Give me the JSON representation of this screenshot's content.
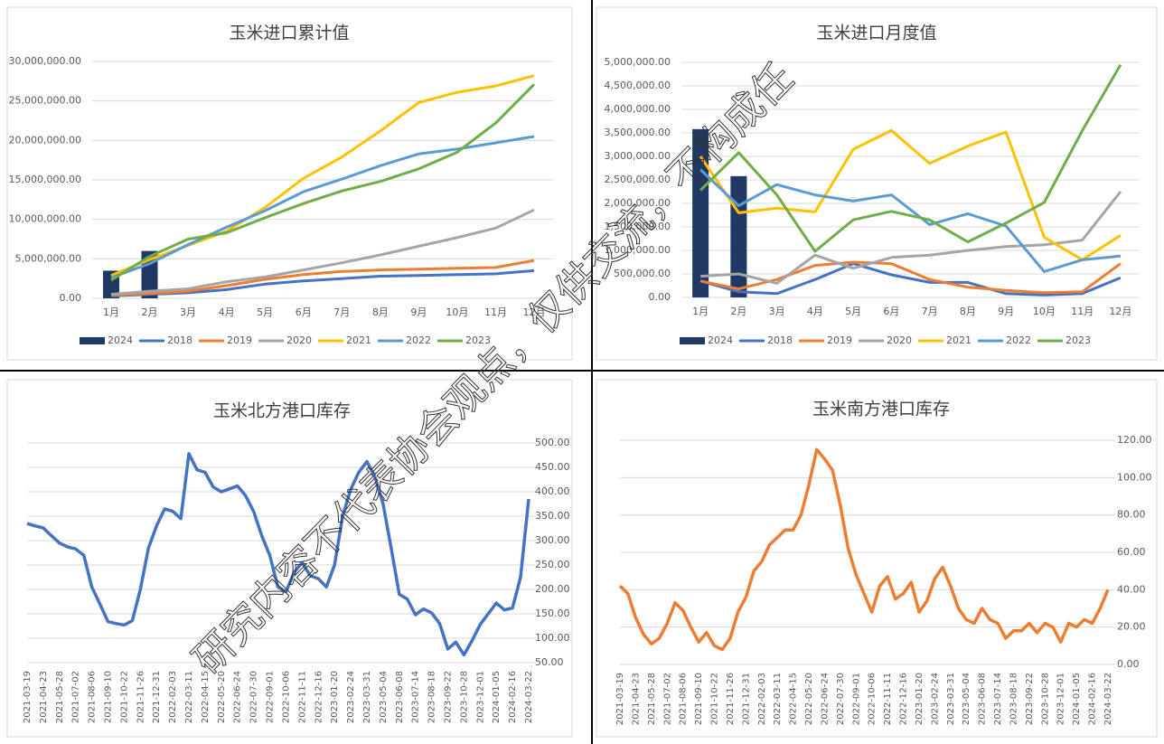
{
  "chart_data": [
    {
      "type": "combo",
      "title": "玉米进口累计值",
      "categories": [
        "1月",
        "2月",
        "3月",
        "4月",
        "5月",
        "6月",
        "7月",
        "8月",
        "9月",
        "10月",
        "11月",
        "12月"
      ],
      "ylim": [
        0,
        30000000
      ],
      "yticks": [
        {
          "value": 0,
          "label": "0.00"
        },
        {
          "value": 5000000,
          "label": "5,000,000.00"
        },
        {
          "value": 10000000,
          "label": "10,000,000.00"
        },
        {
          "value": 15000000,
          "label": "15,000,000.00"
        },
        {
          "value": 20000000,
          "label": "20,000,000.00"
        },
        {
          "value": 25000000,
          "label": "25,000,000.00"
        },
        {
          "value": 30000000,
          "label": "30,000,000.00"
        }
      ],
      "grid": true,
      "legend": "bottom",
      "series": [
        {
          "name": "2024",
          "type": "bar",
          "color": "#203864",
          "values": [
            3500000,
            6000000,
            null,
            null,
            null,
            null,
            null,
            null,
            null,
            null,
            null,
            null
          ]
        },
        {
          "name": "2018",
          "type": "line",
          "color": "#4472c4",
          "values": [
            300000,
            500000,
            700000,
            1100000,
            1800000,
            2200000,
            2500000,
            2800000,
            2900000,
            3000000,
            3100000,
            3500000
          ]
        },
        {
          "name": "2019",
          "type": "line",
          "color": "#ed7d31",
          "values": [
            400000,
            600000,
            900000,
            1600000,
            2400000,
            3000000,
            3400000,
            3600000,
            3700000,
            3800000,
            3900000,
            4800000
          ]
        },
        {
          "name": "2020",
          "type": "line",
          "color": "#a5a5a5",
          "values": [
            500000,
            900000,
            1200000,
            2100000,
            2700000,
            3600000,
            4500000,
            5500000,
            6600000,
            7700000,
            8900000,
            11200000
          ]
        },
        {
          "name": "2021",
          "type": "line",
          "color": "#ffc000",
          "values": [
            2900000,
            4900000,
            6700000,
            8500000,
            11500000,
            15200000,
            17900000,
            21200000,
            24800000,
            26100000,
            26900000,
            28200000
          ]
        },
        {
          "name": "2022",
          "type": "line",
          "color": "#5b9bd5",
          "values": [
            2600000,
            4400000,
            6800000,
            9000000,
            11100000,
            13500000,
            15100000,
            16800000,
            18300000,
            18900000,
            19700000,
            20500000
          ]
        },
        {
          "name": "2023",
          "type": "line",
          "color": "#70ad47",
          "values": [
            2300000,
            5300000,
            7500000,
            8300000,
            10200000,
            12000000,
            13600000,
            14800000,
            16400000,
            18500000,
            22200000,
            27100000
          ]
        }
      ]
    },
    {
      "type": "combo",
      "title": "玉米进口月度值",
      "categories": [
        "1月",
        "2月",
        "3月",
        "4月",
        "5月",
        "6月",
        "7月",
        "8月",
        "9月",
        "10月",
        "11月",
        "12月"
      ],
      "ylim": [
        0,
        5000000
      ],
      "yticks": [
        {
          "value": 0,
          "label": "0.00"
        },
        {
          "value": 500000,
          "label": "500,000.00"
        },
        {
          "value": 1000000,
          "label": "1,000,000.00"
        },
        {
          "value": 1500000,
          "label": "1,500,000.00"
        },
        {
          "value": 2000000,
          "label": "2,000,000.00"
        },
        {
          "value": 2500000,
          "label": "2,500,000.00"
        },
        {
          "value": 3000000,
          "label": "3,000,000.00"
        },
        {
          "value": 3500000,
          "label": "3,500,000.00"
        },
        {
          "value": 4000000,
          "label": "4,000,000.00"
        },
        {
          "value": 4500000,
          "label": "4,500,000.00"
        },
        {
          "value": 5000000,
          "label": "5,000,000.00"
        }
      ],
      "grid": true,
      "legend": "bottom",
      "series": [
        {
          "name": "2024",
          "type": "bar",
          "color": "#203864",
          "values": [
            3580000,
            2580000,
            null,
            null,
            null,
            null,
            null,
            null,
            null,
            null,
            null,
            null
          ]
        },
        {
          "name": "2018",
          "type": "line",
          "color": "#4472c4",
          "values": [
            350000,
            120000,
            80000,
            380000,
            720000,
            480000,
            320000,
            320000,
            80000,
            50000,
            80000,
            420000
          ]
        },
        {
          "name": "2019",
          "type": "line",
          "color": "#ed7d31",
          "values": [
            350000,
            180000,
            380000,
            680000,
            750000,
            720000,
            380000,
            220000,
            150000,
            100000,
            120000,
            720000
          ]
        },
        {
          "name": "2020",
          "type": "line",
          "color": "#a5a5a5",
          "values": [
            450000,
            500000,
            300000,
            900000,
            620000,
            850000,
            900000,
            1000000,
            1080000,
            1120000,
            1220000,
            2250000
          ]
        },
        {
          "name": "2021",
          "type": "line",
          "color": "#ffc000",
          "values": [
            3000000,
            1800000,
            1900000,
            1820000,
            3150000,
            3550000,
            2850000,
            3220000,
            3520000,
            1280000,
            800000,
            1320000
          ]
        },
        {
          "name": "2022",
          "type": "line",
          "color": "#5b9bd5",
          "values": [
            2720000,
            1950000,
            2400000,
            2180000,
            2050000,
            2180000,
            1550000,
            1780000,
            1520000,
            550000,
            800000,
            880000
          ]
        },
        {
          "name": "2023",
          "type": "line",
          "color": "#70ad47",
          "values": [
            2280000,
            3080000,
            2180000,
            980000,
            1650000,
            1830000,
            1650000,
            1180000,
            1580000,
            2020000,
            3550000,
            4950000
          ]
        }
      ]
    },
    {
      "type": "line",
      "title": "玉米北方港口库存",
      "color": "#4472c4",
      "grid": true,
      "yaxis": "right",
      "categories": [
        "2021-03-19",
        null,
        "2021-04-23",
        null,
        "2021-05-28",
        null,
        "2021-07-02",
        null,
        "2021-08-06",
        null,
        "2021-09-10",
        null,
        "2021-10-22",
        null,
        "2021-11-26",
        null,
        "2021-12-31",
        null,
        "2022-02-03",
        null,
        "2022-03-11",
        null,
        "2022-04-15",
        null,
        "2022-05-20",
        null,
        "2022-06-24",
        null,
        "2022-07-30",
        null,
        "2022-09-01",
        null,
        "2022-10-06",
        null,
        "2022-11-11",
        null,
        "2022-12-16",
        null,
        "2023-01-20",
        null,
        "2023-02-24",
        null,
        "2023-03-31",
        null,
        "2023-05-04",
        null,
        "2023-06-08",
        null,
        "2023-07-14",
        null,
        "2023-08-18",
        null,
        "2023-09-22",
        null,
        "2023-10-28",
        null,
        "2023-12-01",
        null,
        "2024-01-05",
        null,
        "2024-02-16",
        null,
        "2024-03-22"
      ],
      "values": [
        335,
        330,
        326,
        310,
        295,
        287,
        283,
        270,
        205,
        170,
        134,
        130,
        127,
        136,
        200,
        285,
        330,
        365,
        360,
        345,
        478,
        445,
        440,
        410,
        400,
        406,
        412,
        392,
        360,
        310,
        270,
        205,
        195,
        235,
        255,
        228,
        222,
        205,
        250,
        350,
        405,
        440,
        462,
        430,
        375,
        285,
        190,
        180,
        148,
        160,
        152,
        130,
        78,
        92,
        66,
        95,
        128,
        150,
        172,
        158,
        162,
        225,
        385
      ],
      "ylim": [
        50,
        500
      ],
      "yticks": [
        {
          "value": 50,
          "label": "50.00"
        },
        {
          "value": 100,
          "label": "100.00"
        },
        {
          "value": 150,
          "label": "150.00"
        },
        {
          "value": 200,
          "label": "200.00"
        },
        {
          "value": 250,
          "label": "250.00"
        },
        {
          "value": 300,
          "label": "300.00"
        },
        {
          "value": 350,
          "label": "350.00"
        },
        {
          "value": 400,
          "label": "400.00"
        },
        {
          "value": 450,
          "label": "450.00"
        },
        {
          "value": 500,
          "label": "500.00"
        }
      ]
    },
    {
      "type": "line",
      "title": "玉米南方港口库存",
      "color": "#ed7d31",
      "grid": true,
      "yaxis": "right",
      "categories": [
        "2021-03-19",
        null,
        "2021-04-23",
        null,
        "2021-05-28",
        null,
        "2021-07-02",
        null,
        "2021-08-06",
        null,
        "2021-09-10",
        null,
        "2021-10-22",
        null,
        "2021-11-26",
        null,
        "2021-12-31",
        null,
        "2022-02-03",
        null,
        "2022-03-11",
        null,
        "2022-04-15",
        null,
        "2022-05-20",
        null,
        "2022-06-24",
        null,
        "2022-07-30",
        null,
        "2022-09-01",
        null,
        "2022-10-06",
        null,
        "2022-11-11",
        null,
        "2022-12-16",
        null,
        "2023-01-20",
        null,
        "2023-02-24",
        null,
        "2023-03-31",
        null,
        "2023-05-04",
        null,
        "2023-06-08",
        null,
        "2023-07-14",
        null,
        "2023-08-18",
        null,
        "2023-09-22",
        null,
        "2023-10-28",
        null,
        "2023-12-01",
        null,
        "2024-01-05",
        null,
        "2024-02-16",
        null,
        "2024-03-22"
      ],
      "values": [
        42,
        38,
        25,
        16,
        11,
        14,
        22,
        33,
        29,
        20,
        12,
        17,
        10,
        8,
        14,
        28,
        36,
        50,
        55,
        64,
        68,
        72,
        72,
        80,
        96,
        115,
        110,
        104,
        85,
        62,
        48,
        38,
        28,
        42,
        47,
        35,
        38,
        44,
        28,
        34,
        46,
        52,
        42,
        30,
        24,
        22,
        30,
        24,
        22,
        14,
        18,
        18,
        22,
        17,
        22,
        20,
        12,
        22,
        20,
        24,
        22,
        30,
        40
      ],
      "ylim": [
        0,
        120
      ],
      "yticks": [
        {
          "value": 0,
          "label": "0.00"
        },
        {
          "value": 20,
          "label": "20.00"
        },
        {
          "value": 40,
          "label": "40.00"
        },
        {
          "value": 60,
          "label": "60.00"
        },
        {
          "value": 80,
          "label": "80.00"
        },
        {
          "value": 100,
          "label": "100.00"
        },
        {
          "value": 120,
          "label": "120.00"
        }
      ]
    }
  ],
  "watermark": "研究内容不代表协会观点，仅供交流，不构成任"
}
